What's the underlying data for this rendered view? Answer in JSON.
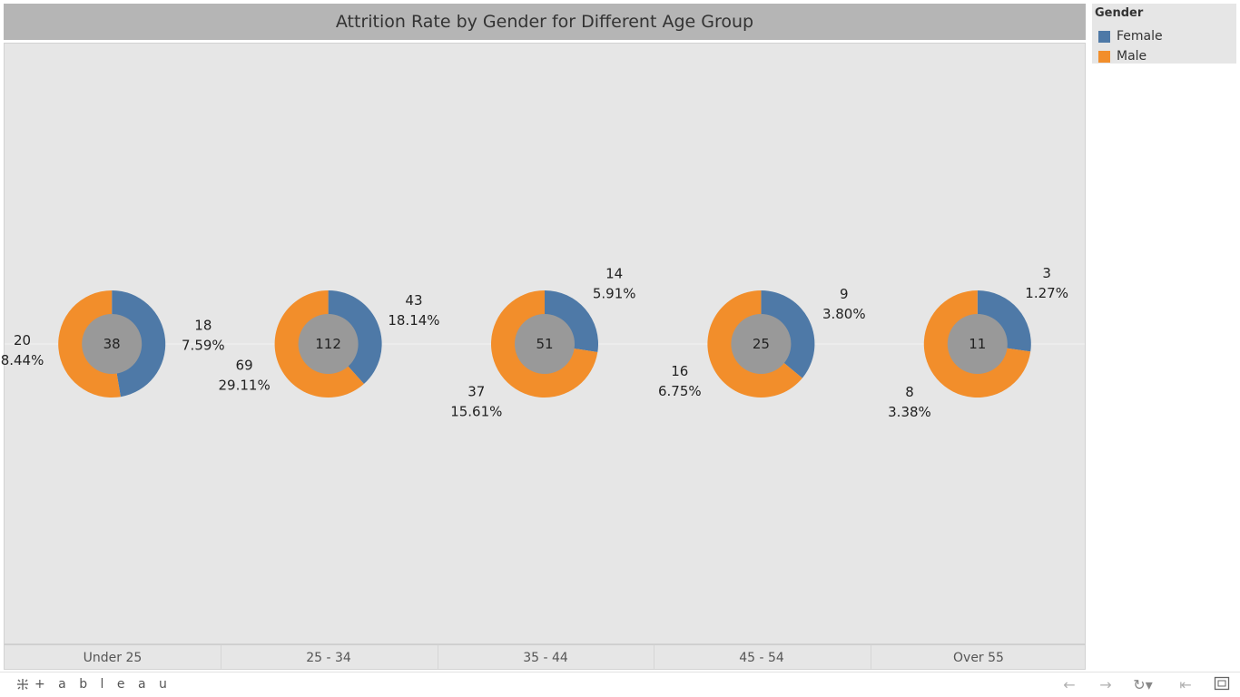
{
  "title": "Attrition Rate by Gender for Different Age Group",
  "legend": {
    "title": "Gender",
    "items": [
      {
        "label": "Female",
        "color": "#4e79a7"
      },
      {
        "label": "Male",
        "color": "#f28e2b"
      }
    ]
  },
  "chart_data": {
    "type": "pie",
    "title": "Attrition Rate by Gender for Different Age Group",
    "categories": [
      "Under 25",
      "25 - 34",
      "35 - 44",
      "45 - 54",
      "Over 55"
    ],
    "totals": [
      38,
      112,
      51,
      25,
      11
    ],
    "series": [
      {
        "name": "Female",
        "color": "#4e79a7",
        "values": [
          18,
          43,
          14,
          9,
          3
        ],
        "percent_labels": [
          "7.59%",
          "18.14%",
          "5.91%",
          "3.80%",
          "1.27%"
        ]
      },
      {
        "name": "Male",
        "color": "#f28e2b",
        "values": [
          20,
          69,
          37,
          16,
          8
        ],
        "percent_labels": [
          "8.44%",
          "29.11%",
          "15.61%",
          "6.75%",
          "3.38%"
        ]
      }
    ],
    "center_color": "#999999",
    "legend_position": "top-right"
  },
  "toolbar": {
    "logo_text": "+ a b l e a u",
    "back_icon": "back-arrow-icon",
    "forward_icon": "forward-arrow-icon",
    "revert_icon": "revert-icon",
    "reset_icon": "reset-icon",
    "fullscreen_icon": "fullscreen-icon"
  }
}
